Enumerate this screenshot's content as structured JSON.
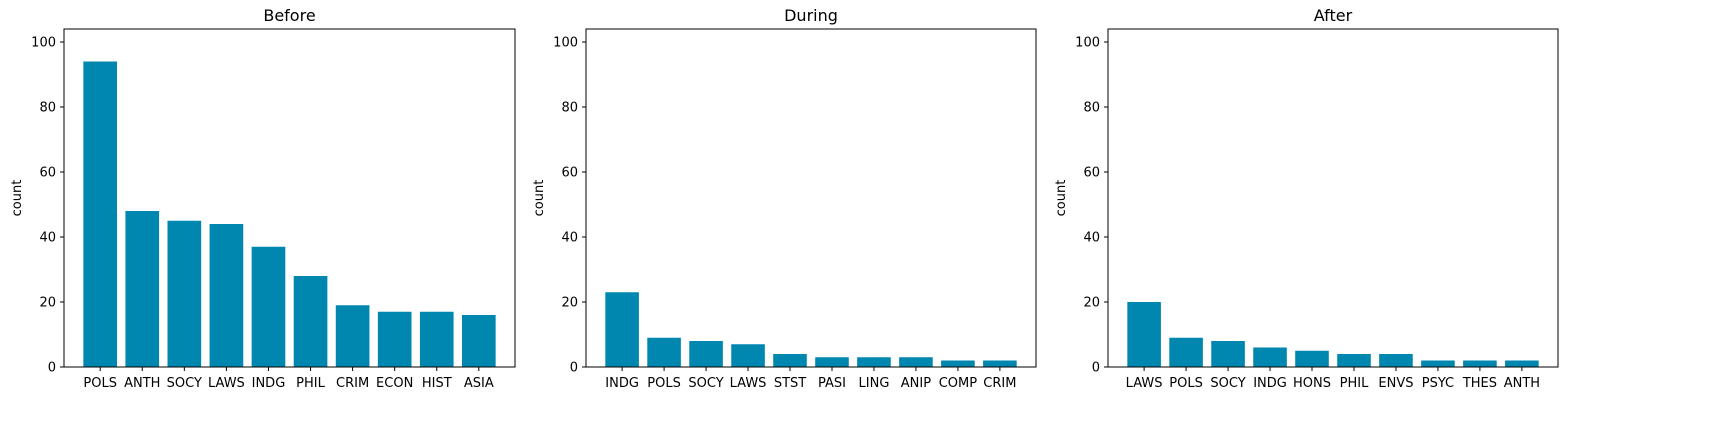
{
  "figure": {
    "bar_color": "#0087B0",
    "axes_color": "#000000",
    "background": "#ffffff"
  },
  "chart_data": [
    {
      "type": "bar",
      "title": "Before",
      "xlabel": "",
      "ylabel": "count",
      "ylim": [
        0,
        104
      ],
      "yticks": [
        0,
        20,
        40,
        60,
        80,
        100
      ],
      "grid": false,
      "categories": [
        "POLS",
        "ANTH",
        "SOCY",
        "LAWS",
        "INDG",
        "PHIL",
        "CRIM",
        "ECON",
        "HIST",
        "ASIA"
      ],
      "values": [
        94,
        48,
        45,
        44,
        37,
        28,
        19,
        17,
        17,
        16
      ]
    },
    {
      "type": "bar",
      "title": "During",
      "xlabel": "",
      "ylabel": "count",
      "ylim": [
        0,
        104
      ],
      "yticks": [
        0,
        20,
        40,
        60,
        80,
        100
      ],
      "grid": false,
      "categories": [
        "INDG",
        "POLS",
        "SOCY",
        "LAWS",
        "STST",
        "PASI",
        "LING",
        "ANIP",
        "COMP",
        "CRIM"
      ],
      "values": [
        23,
        9,
        8,
        7,
        4,
        3,
        3,
        3,
        2,
        2
      ]
    },
    {
      "type": "bar",
      "title": "After",
      "xlabel": "",
      "ylabel": "count",
      "ylim": [
        0,
        104
      ],
      "yticks": [
        0,
        20,
        40,
        60,
        80,
        100
      ],
      "grid": false,
      "categories": [
        "LAWS",
        "POLS",
        "SOCY",
        "INDG",
        "HONS",
        "PHIL",
        "ENVS",
        "PSYC",
        "THES",
        "ANTH"
      ],
      "values": [
        20,
        9,
        8,
        6,
        5,
        4,
        4,
        2,
        2,
        2
      ]
    }
  ]
}
